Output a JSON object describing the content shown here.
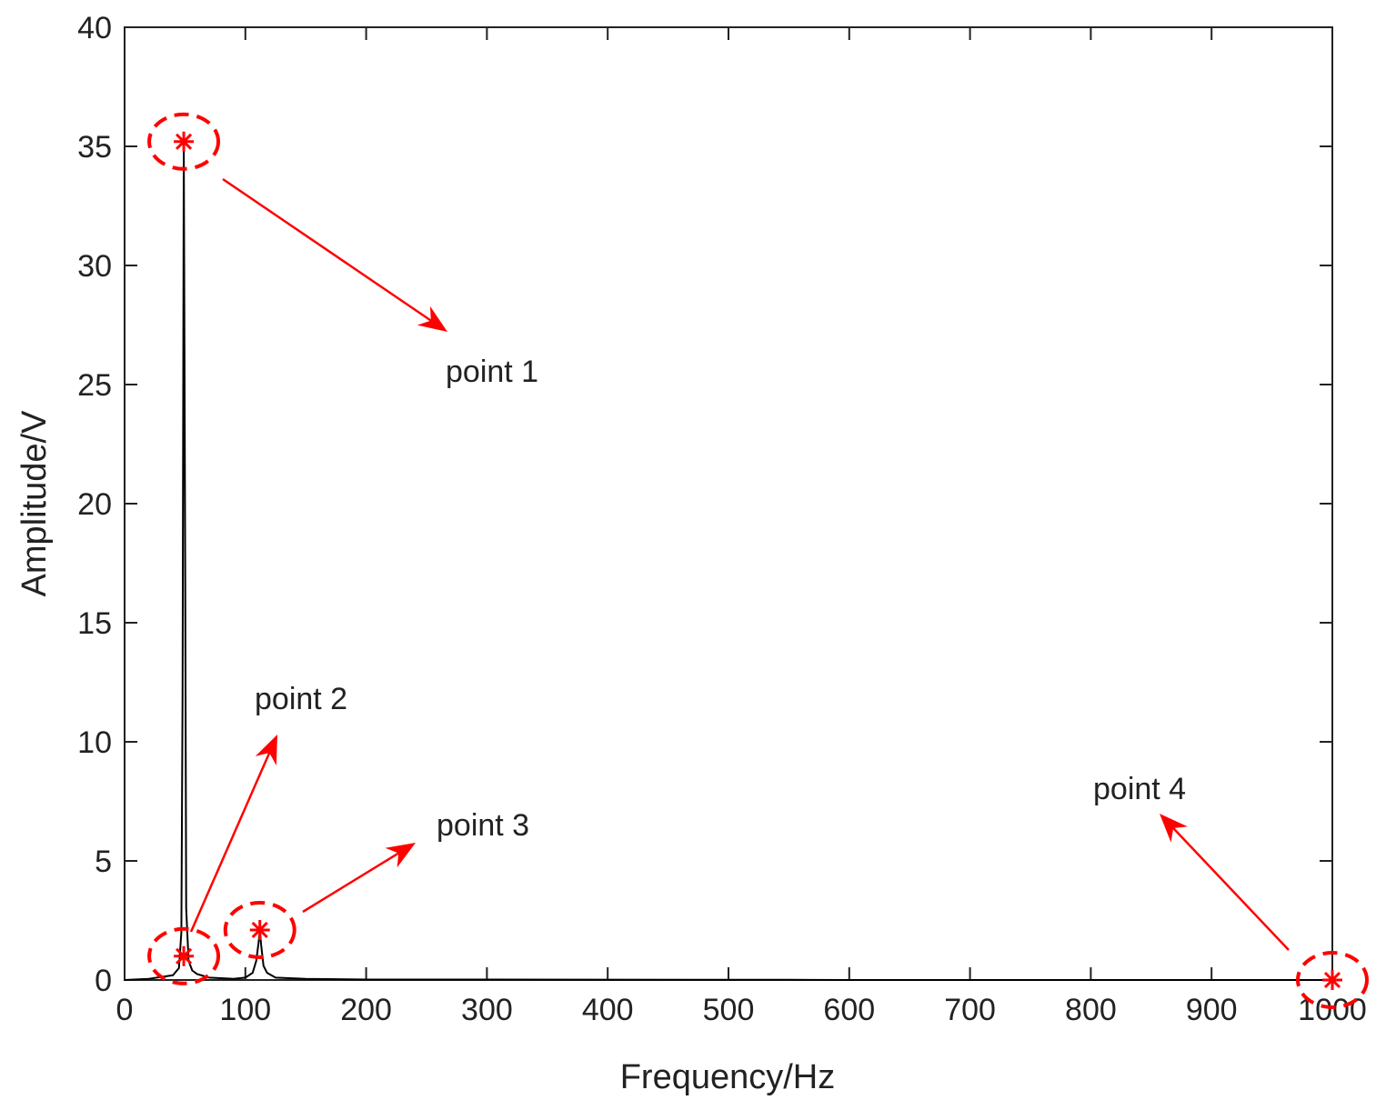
{
  "chart_data": {
    "type": "line",
    "xlabel": "Frequency/Hz",
    "ylabel": "Amplitude/V",
    "xlim": [
      0,
      1000
    ],
    "ylim": [
      0,
      40
    ],
    "xticks": [
      0,
      100,
      200,
      300,
      400,
      500,
      600,
      700,
      800,
      900,
      1000
    ],
    "yticks": [
      0,
      5,
      10,
      15,
      20,
      25,
      30,
      35,
      40
    ],
    "grid": false,
    "series": [
      {
        "color": "#000000",
        "x": [
          0,
          20,
          40,
          45,
          47,
          48,
          49,
          50,
          51,
          53,
          56,
          60,
          70,
          90,
          100,
          106,
          109,
          111,
          112,
          113,
          115,
          118,
          125,
          150,
          200,
          300,
          500,
          550,
          600,
          800,
          1000
        ],
        "values": [
          0,
          0.05,
          0.2,
          0.5,
          2,
          12,
          35.2,
          20,
          3,
          0.8,
          0.4,
          0.25,
          0.1,
          0.05,
          0.1,
          0.3,
          0.8,
          1.6,
          2.1,
          1.5,
          0.6,
          0.3,
          0.1,
          0.05,
          0.02,
          0.02,
          0.01,
          0.01,
          0,
          0,
          0
        ]
      }
    ],
    "marker_color": "#ff0000",
    "annotations": [
      {
        "label": "point 1",
        "x": 49,
        "y": 35.2
      },
      {
        "label": "point 2",
        "x": 49,
        "y": 1
      },
      {
        "label": "point 3",
        "x": 112,
        "y": 2.1
      },
      {
        "label": "point 4",
        "x": 1000,
        "y": 0
      }
    ]
  }
}
